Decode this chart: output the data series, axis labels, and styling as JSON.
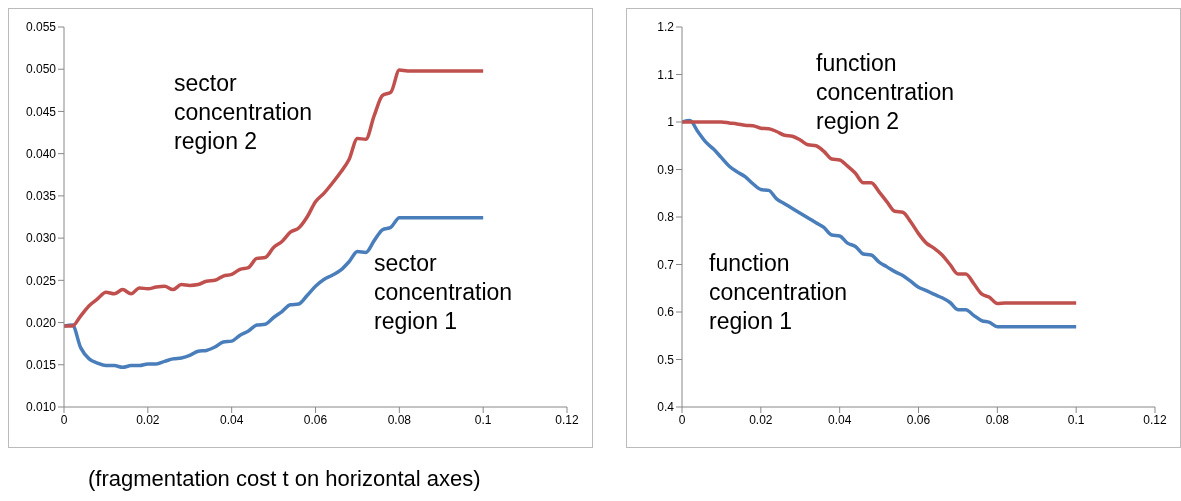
{
  "chart_data": [
    {
      "type": "line",
      "xlim": [
        0,
        0.12
      ],
      "xticks": [
        0,
        0.02,
        0.04,
        0.06,
        0.08,
        0.1,
        0.12
      ],
      "ylim": [
        0.01,
        0.055
      ],
      "yticks": [
        {
          "value": 0.01,
          "label": "0.010"
        },
        {
          "value": 0.015,
          "label": "0.015"
        },
        {
          "value": 0.02,
          "label": "0.020"
        },
        {
          "value": 0.025,
          "label": "0.025"
        },
        {
          "value": 0.03,
          "label": "0.030"
        },
        {
          "value": 0.035,
          "label": "0.035"
        },
        {
          "value": 0.04,
          "label": "0.040"
        },
        {
          "value": 0.045,
          "label": "0.045"
        },
        {
          "value": 0.05,
          "label": "0.050"
        },
        {
          "value": 0.055,
          "label": "0.055"
        }
      ],
      "grid": false,
      "legend": false,
      "marker": "none",
      "line_style": "solid",
      "x": [
        0,
        0.002,
        0.004,
        0.006,
        0.008,
        0.01,
        0.012,
        0.014,
        0.016,
        0.018,
        0.02,
        0.022,
        0.024,
        0.026,
        0.028,
        0.03,
        0.032,
        0.034,
        0.036,
        0.038,
        0.04,
        0.042,
        0.044,
        0.046,
        0.048,
        0.05,
        0.052,
        0.054,
        0.056,
        0.058,
        0.06,
        0.062,
        0.064,
        0.066,
        0.068,
        0.07,
        0.072,
        0.074,
        0.076,
        0.078,
        0.08,
        0.082,
        0.1
      ],
      "series": [
        {
          "name": "sector concentration region 1",
          "color": "#4a7ebb",
          "values": [
            0.0196,
            0.0197,
            0.017,
            0.0157,
            0.0152,
            0.0149,
            0.0149,
            0.0147,
            0.0149,
            0.0149,
            0.0151,
            0.0151,
            0.0154,
            0.0157,
            0.0158,
            0.0161,
            0.0166,
            0.0167,
            0.0171,
            0.0177,
            0.0178,
            0.0185,
            0.019,
            0.0197,
            0.0198,
            0.0206,
            0.0213,
            0.0221,
            0.0222,
            0.0232,
            0.0243,
            0.0251,
            0.0256,
            0.0262,
            0.0272,
            0.0284,
            0.0283,
            0.0297,
            0.031,
            0.0313,
            0.0324,
            0.0324,
            0.0324
          ]
        },
        {
          "name": "sector concentration region 2",
          "color": "#c0504d",
          "values": [
            0.0196,
            0.0196,
            0.0208,
            0.022,
            0.0228,
            0.0236,
            0.0234,
            0.0239,
            0.0234,
            0.0241,
            0.024,
            0.0242,
            0.0243,
            0.0239,
            0.0245,
            0.0244,
            0.0245,
            0.0249,
            0.025,
            0.0255,
            0.0257,
            0.0263,
            0.0265,
            0.0276,
            0.0277,
            0.0289,
            0.0296,
            0.0307,
            0.0312,
            0.0325,
            0.0343,
            0.0353,
            0.0365,
            0.0378,
            0.0393,
            0.0418,
            0.0417,
            0.0445,
            0.0469,
            0.0473,
            0.0499,
            0.0498,
            0.0498
          ]
        }
      ],
      "annotations": [
        "(fragmentation cost t on horizontal axes)"
      ]
    },
    {
      "type": "line",
      "xlim": [
        0,
        0.12
      ],
      "xticks": [
        0,
        0.02,
        0.04,
        0.06,
        0.08,
        0.1,
        0.12
      ],
      "ylim": [
        0.4,
        1.2
      ],
      "yticks": [
        0.4,
        0.5,
        0.6,
        0.7,
        0.8,
        0.9,
        1,
        1.1,
        1.2
      ],
      "grid": false,
      "legend": false,
      "marker": "none",
      "line_style": "solid",
      "x": [
        0,
        0.002,
        0.004,
        0.006,
        0.008,
        0.01,
        0.012,
        0.014,
        0.016,
        0.018,
        0.02,
        0.022,
        0.024,
        0.026,
        0.028,
        0.03,
        0.032,
        0.034,
        0.036,
        0.038,
        0.04,
        0.042,
        0.044,
        0.046,
        0.048,
        0.05,
        0.052,
        0.054,
        0.056,
        0.058,
        0.06,
        0.062,
        0.064,
        0.066,
        0.068,
        0.07,
        0.072,
        0.074,
        0.076,
        0.078,
        0.08,
        0.082,
        0.1
      ],
      "series": [
        {
          "name": "function concentration region 1",
          "color": "#4a7ebb",
          "values": [
            1.0,
            1.003,
            0.98,
            0.958,
            0.943,
            0.925,
            0.907,
            0.895,
            0.885,
            0.87,
            0.858,
            0.856,
            0.838,
            0.828,
            0.818,
            0.808,
            0.798,
            0.788,
            0.778,
            0.762,
            0.76,
            0.745,
            0.738,
            0.722,
            0.72,
            0.705,
            0.695,
            0.685,
            0.677,
            0.665,
            0.652,
            0.645,
            0.637,
            0.63,
            0.62,
            0.605,
            0.605,
            0.593,
            0.582,
            0.578,
            0.569,
            0.569,
            0.569
          ]
        },
        {
          "name": "function concentration region 2",
          "color": "#c0504d",
          "values": [
            1.0,
            1.0,
            1.0,
            1.0,
            1.0,
            1.0,
            0.998,
            0.996,
            0.993,
            0.992,
            0.987,
            0.986,
            0.98,
            0.972,
            0.97,
            0.962,
            0.952,
            0.95,
            0.938,
            0.922,
            0.92,
            0.907,
            0.892,
            0.872,
            0.872,
            0.853,
            0.832,
            0.812,
            0.81,
            0.79,
            0.765,
            0.745,
            0.734,
            0.72,
            0.7,
            0.68,
            0.68,
            0.66,
            0.638,
            0.631,
            0.618,
            0.619,
            0.619
          ]
        }
      ]
    }
  ]
}
